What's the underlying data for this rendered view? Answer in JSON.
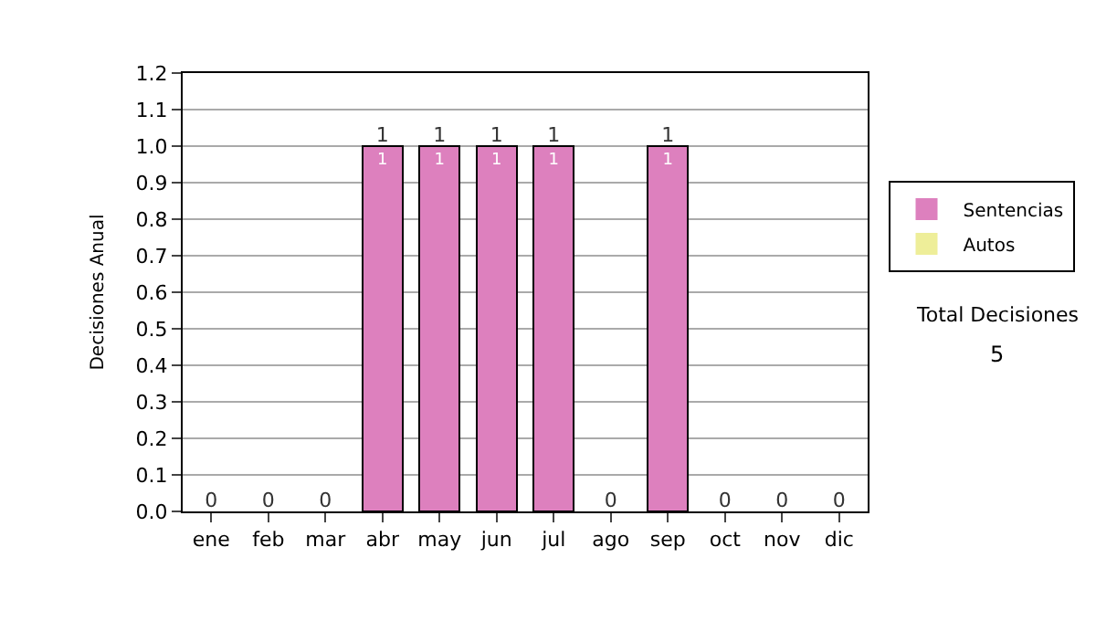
{
  "chart_data": {
    "type": "bar",
    "stacked": true,
    "ylabel": "Decisiones Anual",
    "categories": [
      "ene",
      "feb",
      "mar",
      "abr",
      "may",
      "jun",
      "jul",
      "ago",
      "sep",
      "oct",
      "nov",
      "dic"
    ],
    "series": [
      {
        "name": "Sentencias",
        "color": "#dd80be",
        "values": [
          0,
          0,
          0,
          1,
          1,
          1,
          1,
          0,
          1,
          0,
          0,
          0
        ],
        "value_labels": [
          null,
          null,
          null,
          "1",
          "1",
          "1",
          "1",
          null,
          "1",
          null,
          null,
          null
        ]
      },
      {
        "name": "Autos",
        "color": "#eeee99",
        "values": [
          0,
          0,
          0,
          0,
          0,
          0,
          0,
          0,
          0,
          0,
          0,
          0
        ]
      }
    ],
    "totals": [
      "0",
      "0",
      "0",
      "1",
      "1",
      "1",
      "1",
      "0",
      "1",
      "0",
      "0",
      "0"
    ],
    "ylim": [
      0,
      1.2
    ],
    "yticks": [
      {
        "value": 0,
        "label": "0.0"
      },
      0.1,
      0.2,
      0.3,
      0.4,
      0.5,
      0.6,
      0.7,
      0.8,
      0.9,
      {
        "value": 1,
        "label": "1.0"
      },
      1.1,
      1.2
    ],
    "grid": "y",
    "legend": "right",
    "annotations": [
      "Total Decisiones",
      "5"
    ]
  }
}
